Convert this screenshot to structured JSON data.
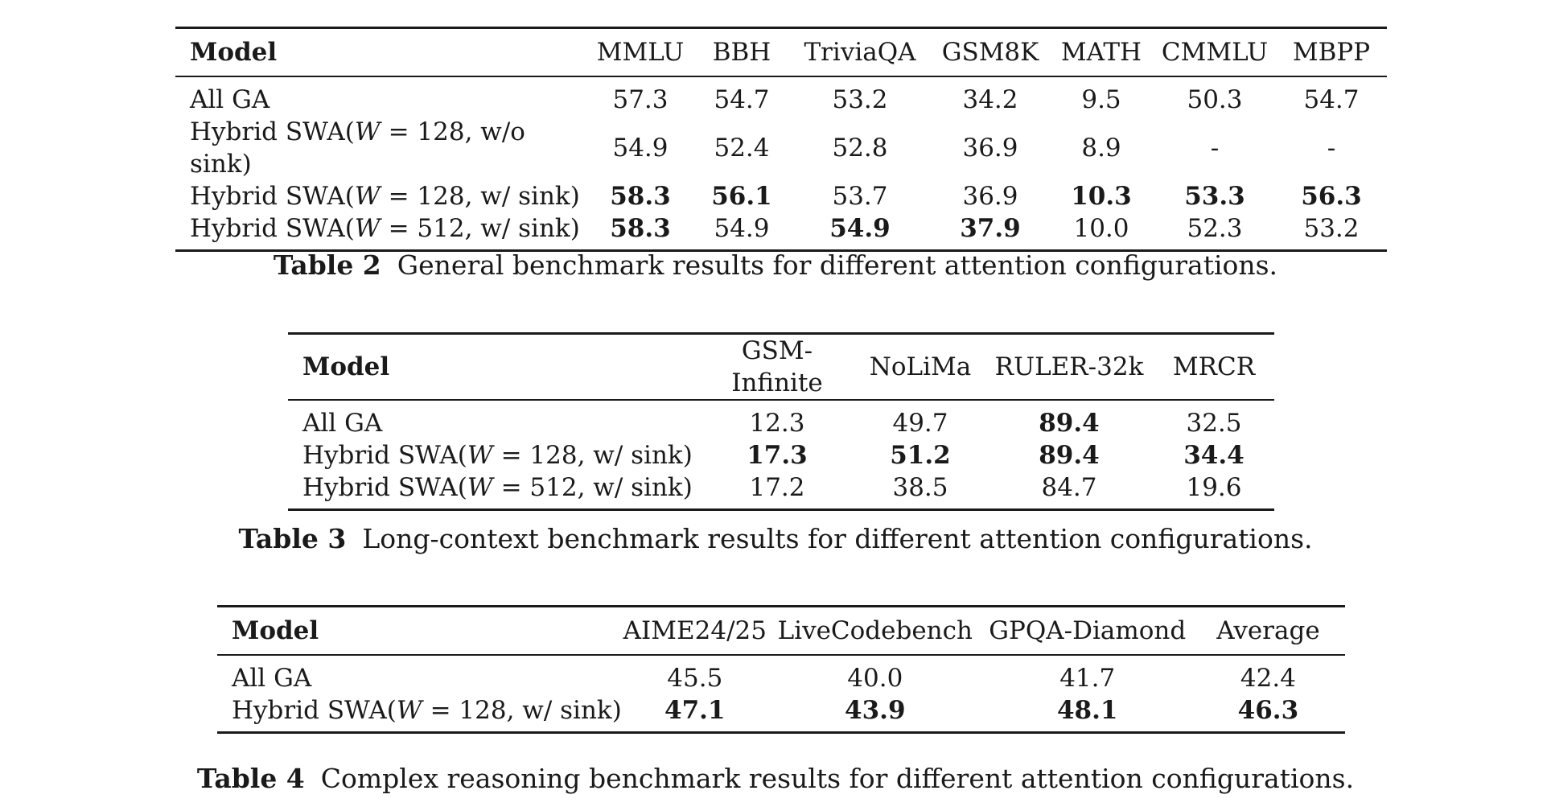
{
  "table2": {
    "headers": [
      "Model",
      "MMLU",
      "BBH",
      "TriviaQA",
      "GSM8K",
      "MATH",
      "CMMLU",
      "MBPP"
    ],
    "rows": [
      {
        "model_prefix": "All GA",
        "model_w": "",
        "model_suffix": "",
        "values": [
          "57.3",
          "54.7",
          "53.2",
          "34.2",
          "9.5",
          "50.3",
          "54.7"
        ],
        "bold": [
          false,
          false,
          false,
          false,
          false,
          false,
          false
        ]
      },
      {
        "model_prefix": "Hybrid SWA(",
        "model_w": "W",
        "model_suffix": " = 128, w/o sink)",
        "values": [
          "54.9",
          "52.4",
          "52.8",
          "36.9",
          "8.9",
          "-",
          "-"
        ],
        "bold": [
          false,
          false,
          false,
          false,
          false,
          false,
          false
        ]
      },
      {
        "model_prefix": "Hybrid SWA(",
        "model_w": "W",
        "model_suffix": " = 128, w/ sink)",
        "values": [
          "58.3",
          "56.1",
          "53.7",
          "36.9",
          "10.3",
          "53.3",
          "56.3"
        ],
        "bold": [
          true,
          true,
          false,
          false,
          true,
          true,
          true
        ]
      },
      {
        "model_prefix": "Hybrid SWA(",
        "model_w": "W",
        "model_suffix": " = 512, w/ sink)",
        "values": [
          "58.3",
          "54.9",
          "54.9",
          "37.9",
          "10.0",
          "52.3",
          "53.2"
        ],
        "bold": [
          true,
          false,
          true,
          true,
          false,
          false,
          false
        ]
      }
    ],
    "caption_label": "Table 2",
    "caption_text": "General benchmark results for different attention configurations."
  },
  "table3": {
    "headers": [
      "Model",
      "GSM-Infinite",
      "NoLiMa",
      "RULER-32k",
      "MRCR"
    ],
    "rows": [
      {
        "model_prefix": "All GA",
        "model_w": "",
        "model_suffix": "",
        "values": [
          "12.3",
          "49.7",
          "89.4",
          "32.5"
        ],
        "bold": [
          false,
          false,
          true,
          false
        ]
      },
      {
        "model_prefix": "Hybrid SWA(",
        "model_w": "W",
        "model_suffix": " = 128, w/ sink)",
        "values": [
          "17.3",
          "51.2",
          "89.4",
          "34.4"
        ],
        "bold": [
          true,
          true,
          true,
          true
        ]
      },
      {
        "model_prefix": "Hybrid SWA(",
        "model_w": "W",
        "model_suffix": " = 512, w/ sink)",
        "values": [
          "17.2",
          "38.5",
          "84.7",
          "19.6"
        ],
        "bold": [
          false,
          false,
          false,
          false
        ]
      }
    ],
    "caption_label": "Table 3",
    "caption_text": "Long-context benchmark results for different attention configurations."
  },
  "table4": {
    "headers": [
      "Model",
      "AIME24/25",
      "LiveCodebench",
      "GPQA-Diamond",
      "Average"
    ],
    "rows": [
      {
        "model_prefix": "All GA",
        "model_w": "",
        "model_suffix": "",
        "values": [
          "45.5",
          "40.0",
          "41.7",
          "42.4"
        ],
        "bold": [
          false,
          false,
          false,
          false
        ]
      },
      {
        "model_prefix": "Hybrid SWA(",
        "model_w": "W",
        "model_suffix": " = 128, w/ sink)",
        "values": [
          "47.1",
          "43.9",
          "48.1",
          "46.3"
        ],
        "bold": [
          true,
          true,
          true,
          true
        ]
      }
    ],
    "caption_label": "Table 4",
    "caption_text": "Complex reasoning benchmark results for different attention configurations."
  }
}
